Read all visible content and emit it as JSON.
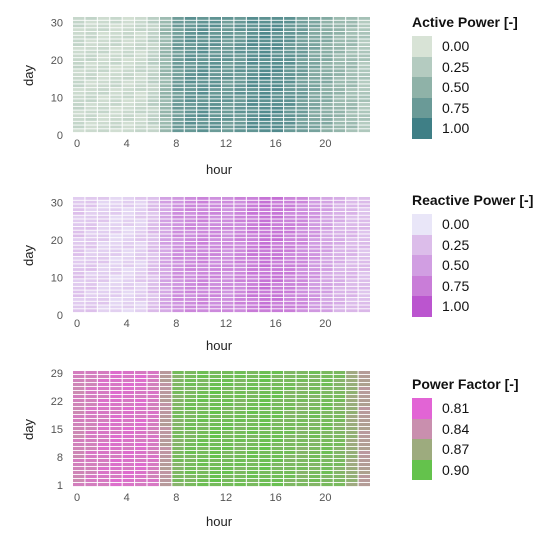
{
  "chart_data": [
    {
      "type": "heatmap",
      "xlabel": "hour",
      "ylabel": "day",
      "x": [
        0,
        1,
        2,
        3,
        4,
        5,
        6,
        7,
        8,
        9,
        10,
        11,
        12,
        13,
        14,
        15,
        16,
        17,
        18,
        19,
        20,
        21,
        22,
        23
      ],
      "x_ticks": [
        0,
        4,
        8,
        12,
        16,
        20
      ],
      "y_range": [
        1,
        31
      ],
      "y_ticks": [
        0,
        10,
        20,
        30
      ],
      "hourly_profile": [
        0.12,
        0.11,
        0.1,
        0.1,
        0.1,
        0.11,
        0.18,
        0.45,
        0.72,
        0.8,
        0.82,
        0.8,
        0.75,
        0.78,
        0.85,
        0.88,
        0.86,
        0.8,
        0.72,
        0.62,
        0.55,
        0.45,
        0.4,
        0.3
      ],
      "legend": {
        "title": "Active Power [-]",
        "entries": [
          {
            "label": "0.00",
            "color": "#d8e3d6"
          },
          {
            "label": "0.25",
            "color": "#b4cbc0"
          },
          {
            "label": "0.50",
            "color": "#8fb2a8"
          },
          {
            "label": "0.75",
            "color": "#6a9a97"
          },
          {
            "label": "1.00",
            "color": "#3f7f86"
          }
        ]
      }
    },
    {
      "type": "heatmap",
      "xlabel": "hour",
      "ylabel": "day",
      "x": [
        0,
        1,
        2,
        3,
        4,
        5,
        6,
        7,
        8,
        9,
        10,
        11,
        12,
        13,
        14,
        15,
        16,
        17,
        18,
        19,
        20,
        21,
        22,
        23
      ],
      "x_ticks": [
        0,
        4,
        8,
        12,
        16,
        20
      ],
      "y_range": [
        1,
        31
      ],
      "y_ticks": [
        0,
        10,
        20,
        30
      ],
      "hourly_profile": [
        0.2,
        0.18,
        0.15,
        0.12,
        0.12,
        0.15,
        0.25,
        0.45,
        0.6,
        0.65,
        0.68,
        0.65,
        0.62,
        0.68,
        0.75,
        0.8,
        0.78,
        0.72,
        0.65,
        0.55,
        0.45,
        0.35,
        0.3,
        0.25
      ],
      "legend": {
        "title": "Reactive Power [-]",
        "entries": [
          {
            "label": "0.00",
            "color": "#e9e6f8"
          },
          {
            "label": "0.25",
            "color": "#dcbdea"
          },
          {
            "label": "0.50",
            "color": "#d19ee2"
          },
          {
            "label": "0.75",
            "color": "#c97dd8"
          },
          {
            "label": "1.00",
            "color": "#bb55cf"
          }
        ]
      }
    },
    {
      "type": "heatmap",
      "xlabel": "hour",
      "ylabel": "day",
      "x": [
        0,
        1,
        2,
        3,
        4,
        5,
        6,
        7,
        8,
        9,
        10,
        11,
        12,
        13,
        14,
        15,
        16,
        17,
        18,
        19,
        20,
        21,
        22,
        23
      ],
      "x_ticks": [
        0,
        4,
        8,
        12,
        16,
        20
      ],
      "y_range": [
        1,
        29
      ],
      "y_ticks": [
        1,
        8,
        15,
        22,
        29
      ],
      "hourly_profile": [
        0.25,
        0.2,
        0.15,
        0.12,
        0.12,
        0.12,
        0.18,
        0.45,
        0.85,
        0.9,
        0.92,
        0.95,
        0.92,
        0.9,
        0.92,
        0.95,
        0.92,
        0.88,
        0.85,
        0.88,
        0.9,
        0.85,
        0.7,
        0.5
      ],
      "legend": {
        "title": "Power Factor [-]",
        "entries": [
          {
            "label": "0.81",
            "color": "#e264d5"
          },
          {
            "label": "0.84",
            "color": "#c98fae"
          },
          {
            "label": "0.87",
            "color": "#9dab7e"
          },
          {
            "label": "0.90",
            "color": "#64c24c"
          }
        ]
      }
    }
  ]
}
